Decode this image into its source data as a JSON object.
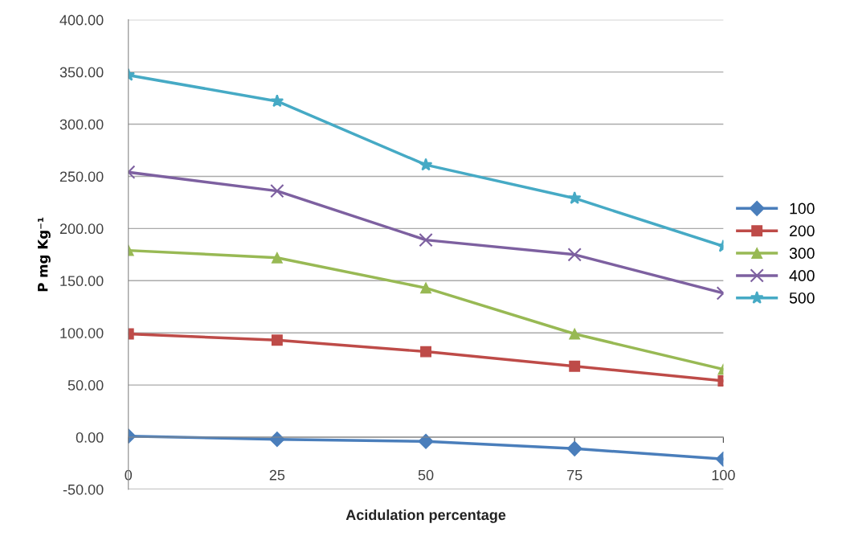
{
  "chart_data": {
    "type": "line",
    "xlabel": "Acidulation percentage",
    "ylabel": "P mg Kg⁻¹",
    "categories": [
      "0",
      "25",
      "50",
      "75",
      "100"
    ],
    "series": [
      {
        "name": "100",
        "color": "#4a7ebb",
        "marker": "diamond",
        "values": [
          1,
          -2,
          -4,
          -11,
          -21
        ]
      },
      {
        "name": "200",
        "color": "#be4b48",
        "marker": "square",
        "values": [
          99,
          93,
          82,
          68,
          54
        ]
      },
      {
        "name": "300",
        "color": "#98b954",
        "marker": "triangle",
        "values": [
          179,
          172,
          143,
          99,
          65
        ]
      },
      {
        "name": "400",
        "color": "#7d60a0",
        "marker": "cross",
        "values": [
          254,
          236,
          189,
          175,
          138
        ]
      },
      {
        "name": "500",
        "color": "#46aac5",
        "marker": "star",
        "values": [
          347,
          322,
          261,
          229,
          183
        ]
      }
    ],
    "ylim": [
      -50,
      400
    ],
    "yticks": [
      {
        "value": -50,
        "label": "-50.00"
      },
      {
        "value": 0,
        "label": "0.00"
      },
      {
        "value": 50,
        "label": "50.00"
      },
      {
        "value": 100,
        "label": "100.00"
      },
      {
        "value": 150,
        "label": "150.00"
      },
      {
        "value": 200,
        "label": "200.00"
      },
      {
        "value": 250,
        "label": "250.00"
      },
      {
        "value": 300,
        "label": "300.00"
      },
      {
        "value": 350,
        "label": "350.00"
      },
      {
        "value": 400,
        "label": "400.00"
      }
    ],
    "grid": "y",
    "legend": "right",
    "line_style": "solid"
  }
}
